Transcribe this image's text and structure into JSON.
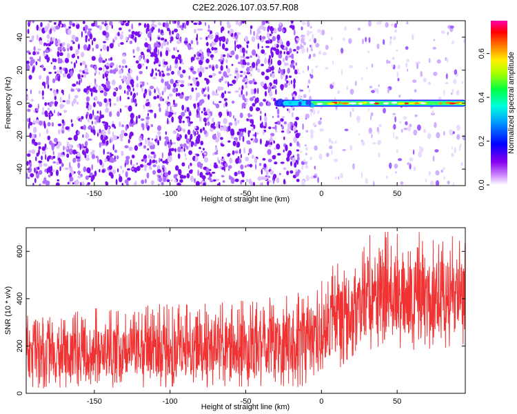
{
  "title": "C2E2.2026.107.03.57.R08",
  "chart_data": [
    {
      "type": "heatmap",
      "name": "spectrogram",
      "xlabel": "Height of straight line (km)",
      "ylabel": "Frequency (Hz)",
      "xlim": [
        -195,
        95
      ],
      "ylim": [
        -50,
        50
      ],
      "xticks": [
        -150,
        -100,
        -50,
        0,
        50
      ],
      "xtick_labels": [
        "-150",
        "-100",
        "-50",
        "0",
        "50"
      ],
      "yticks": [
        -40,
        -20,
        0,
        20,
        40
      ],
      "ytick_labels": [
        "-40",
        "-20",
        "0",
        "20",
        "40"
      ],
      "noise_description": "dense purple speckle noise for heights below about -10 km, sparse light speckle above",
      "signal": {
        "frequency_hz": 0,
        "start_height_km": -30,
        "end_height_km": 95,
        "peak_amplitude": 0.75
      },
      "colorbar": {
        "label": "Normalized spectral amplitude",
        "range": [
          0.0,
          0.75
        ],
        "ticks": [
          0.0,
          0.2,
          0.4,
          0.6
        ],
        "tick_labels": [
          "0.0",
          "0.2",
          "0.4",
          "0.6"
        ],
        "colors": [
          "#ffffff",
          "#8800ee",
          "#0000ff",
          "#00ffff",
          "#00ff66",
          "#aaff00",
          "#ffff00",
          "#ff8800",
          "#ff0000",
          "#ff00aa"
        ]
      }
    },
    {
      "type": "line",
      "name": "snr",
      "xlabel": "Height of straight line (km)",
      "ylabel": "SNR (10 * v/v)",
      "xlim": [
        -195,
        95
      ],
      "ylim": [
        0,
        700
      ],
      "xticks": [
        -150,
        -100,
        -50,
        0,
        50
      ],
      "xtick_labels": [
        "-150",
        "-100",
        "-50",
        "0",
        "50"
      ],
      "yticks": [
        0,
        200,
        400,
        600
      ],
      "ytick_labels": [
        "0",
        "200",
        "400",
        "600"
      ],
      "color": "#f03232",
      "series": [
        {
          "name": "SNR band",
          "x": [
            -195,
            -150,
            -100,
            -50,
            -15,
            0,
            10,
            20,
            30,
            50,
            70,
            95
          ],
          "low": [
            20,
            20,
            25,
            25,
            25,
            60,
            100,
            140,
            170,
            180,
            180,
            200
          ],
          "mean": [
            150,
            160,
            170,
            180,
            180,
            230,
            280,
            320,
            350,
            370,
            360,
            360
          ],
          "high": [
            330,
            360,
            380,
            400,
            430,
            500,
            580,
            640,
            680,
            690,
            680,
            680
          ]
        }
      ]
    }
  ]
}
